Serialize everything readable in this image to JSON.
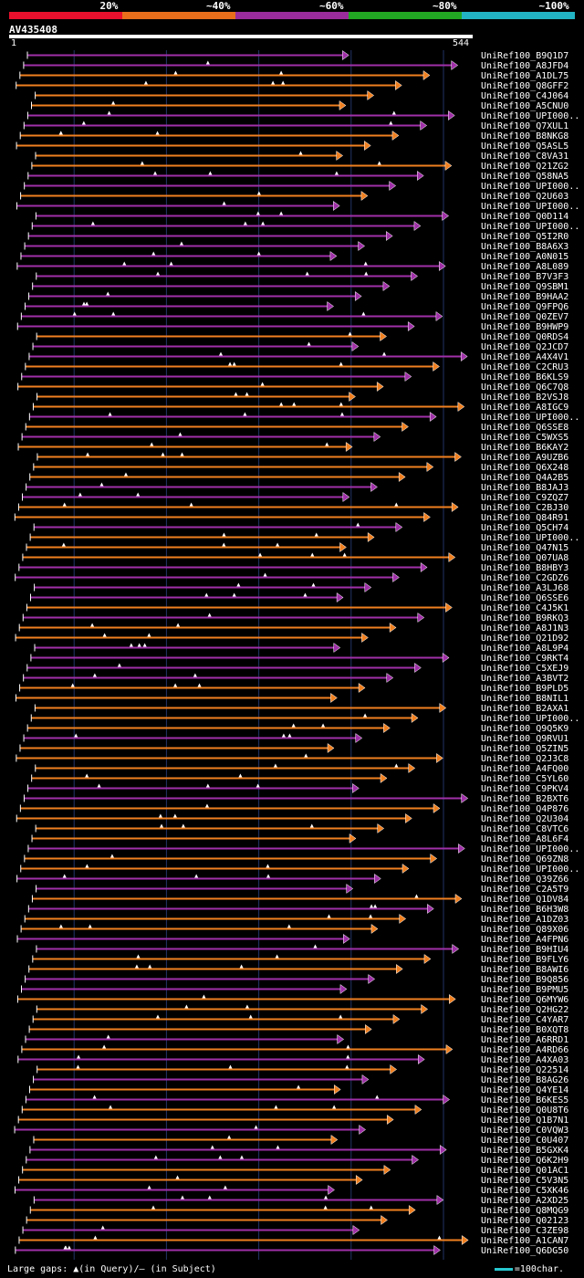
{
  "chart_data": {
    "type": "alignment-overview",
    "title": "AV435408",
    "query_start": 1,
    "query_end": 544,
    "legend": [
      {
        "label": "20%",
        "color": "#e8102c"
      },
      {
        "label": "~40%",
        "color": "#e86e1c"
      },
      {
        "label": "~60%",
        "color": "#9b2c9b"
      },
      {
        "label": "~80%",
        "color": "#22a822"
      },
      {
        "label": "~100%",
        "color": "#22b4c4"
      }
    ],
    "colors": {
      "orange": "#f08020",
      "purple": "#a030a8",
      "grid": "#223366",
      "gap_marker": "#ffffff"
    },
    "hits": [
      {
        "label": "UniRef100_B9Q1D7",
        "color": "purple"
      },
      {
        "label": "UniRef100_A8JFD4",
        "color": "purple"
      },
      {
        "label": "UniRef100_A1DL75",
        "color": "orange"
      },
      {
        "label": "UniRef100_Q8GFF2",
        "color": "orange"
      },
      {
        "label": "UniRef100_C4J064",
        "color": "orange"
      },
      {
        "label": "UniRef100_A5CNU0",
        "color": "orange"
      },
      {
        "label": "UniRef100_UPI000..",
        "color": "purple"
      },
      {
        "label": "UniRef100_Q7XUL1",
        "color": "purple"
      },
      {
        "label": "UniRef100_B8NKG8",
        "color": "orange"
      },
      {
        "label": "UniRef100_Q5ASL5",
        "color": "orange"
      },
      {
        "label": "UniRef100_C8VA31",
        "color": "orange"
      },
      {
        "label": "UniRef100_Q21ZG2",
        "color": "orange"
      },
      {
        "label": "UniRef100_Q58NA5",
        "color": "purple"
      },
      {
        "label": "UniRef100_UPI000..",
        "color": "purple"
      },
      {
        "label": "UniRef100_Q2U603",
        "color": "orange"
      },
      {
        "label": "UniRef100_UPI000..",
        "color": "purple"
      },
      {
        "label": "UniRef100_Q0D114",
        "color": "purple"
      },
      {
        "label": "UniRef100_UPI000..",
        "color": "purple"
      },
      {
        "label": "UniRef100_Q5I2R0",
        "color": "purple"
      },
      {
        "label": "UniRef100_B8A6X3",
        "color": "purple"
      },
      {
        "label": "UniRef100_A0N015",
        "color": "purple"
      },
      {
        "label": "UniRef100_A8L089",
        "color": "purple"
      },
      {
        "label": "UniRef100_B7V3F3",
        "color": "purple"
      },
      {
        "label": "UniRef100_Q9SBM1",
        "color": "purple"
      },
      {
        "label": "UniRef100_B9HAA2",
        "color": "purple"
      },
      {
        "label": "UniRef100_Q9FPQ6",
        "color": "purple"
      },
      {
        "label": "UniRef100_Q0ZEV7",
        "color": "purple"
      },
      {
        "label": "UniRef100_B9HWP9",
        "color": "purple"
      },
      {
        "label": "UniRef100_Q0RDS4",
        "color": "orange"
      },
      {
        "label": "UniRef100_Q2JCD7",
        "color": "purple"
      },
      {
        "label": "UniRef100_A4X4V1",
        "color": "purple"
      },
      {
        "label": "UniRef100_C2CRU3",
        "color": "orange"
      },
      {
        "label": "UniRef100_B6KLS9",
        "color": "purple"
      },
      {
        "label": "UniRef100_Q6C7Q8",
        "color": "orange"
      },
      {
        "label": "UniRef100_B2VSJ8",
        "color": "orange"
      },
      {
        "label": "UniRef100_A8IGC9",
        "color": "orange"
      },
      {
        "label": "UniRef100_UPI000..",
        "color": "purple"
      },
      {
        "label": "UniRef100_Q6SSE8",
        "color": "orange"
      },
      {
        "label": "UniRef100_C5WXS5",
        "color": "purple"
      },
      {
        "label": "UniRef100_B6KAY2",
        "color": "orange"
      },
      {
        "label": "UniRef100_A9UZB6",
        "color": "orange"
      },
      {
        "label": "UniRef100_Q6X248",
        "color": "orange"
      },
      {
        "label": "UniRef100_Q4A2B5",
        "color": "orange"
      },
      {
        "label": "UniRef100_B8JAJ3",
        "color": "purple"
      },
      {
        "label": "UniRef100_C9ZQZ7",
        "color": "purple"
      },
      {
        "label": "UniRef100_C2BJ30",
        "color": "orange"
      },
      {
        "label": "UniRef100_Q84R91",
        "color": "orange"
      },
      {
        "label": "UniRef100_Q5CH74",
        "color": "purple"
      },
      {
        "label": "UniRef100_UPI000..",
        "color": "orange"
      },
      {
        "label": "UniRef100_Q47N15",
        "color": "orange"
      },
      {
        "label": "UniRef100_Q07UA8",
        "color": "orange"
      },
      {
        "label": "UniRef100_B8HBY3",
        "color": "purple"
      },
      {
        "label": "UniRef100_C2GDZ6",
        "color": "purple"
      },
      {
        "label": "UniRef100_A3LJ68",
        "color": "purple"
      },
      {
        "label": "UniRef100_Q6SSE6",
        "color": "purple"
      },
      {
        "label": "UniRef100_C4J5K1",
        "color": "orange"
      },
      {
        "label": "UniRef100_B9RKQ3",
        "color": "purple"
      },
      {
        "label": "UniRef100_A8J1N3",
        "color": "orange"
      },
      {
        "label": "UniRef100_Q21D92",
        "color": "orange"
      },
      {
        "label": "UniRef100_A8L9P4",
        "color": "purple"
      },
      {
        "label": "UniRef100_C9RKT4",
        "color": "purple"
      },
      {
        "label": "UniRef100_C5XEJ9",
        "color": "purple"
      },
      {
        "label": "UniRef100_A3BVT2",
        "color": "purple"
      },
      {
        "label": "UniRef100_B9PLD5",
        "color": "orange"
      },
      {
        "label": "UniRef100_B8NIL1",
        "color": "orange"
      },
      {
        "label": "UniRef100_B2AXA1",
        "color": "orange"
      },
      {
        "label": "UniRef100_UPI000..",
        "color": "orange"
      },
      {
        "label": "UniRef100_Q9Q5K9",
        "color": "orange"
      },
      {
        "label": "UniRef100_Q9RVU1",
        "color": "purple"
      },
      {
        "label": "UniRef100_Q5ZIN5",
        "color": "orange"
      },
      {
        "label": "UniRef100_Q2J3C8",
        "color": "orange"
      },
      {
        "label": "UniRef100_A4FQ00",
        "color": "orange"
      },
      {
        "label": "UniRef100_C5YL60",
        "color": "orange"
      },
      {
        "label": "UniRef100_C9PKV4",
        "color": "purple"
      },
      {
        "label": "UniRef100_B2BXT6",
        "color": "purple"
      },
      {
        "label": "UniRef100_Q4P876",
        "color": "orange"
      },
      {
        "label": "UniRef100_Q2U304",
        "color": "orange"
      },
      {
        "label": "UniRef100_C8VTC6",
        "color": "orange"
      },
      {
        "label": "UniRef100_A8L6F4",
        "color": "orange"
      },
      {
        "label": "UniRef100_UPI000..",
        "color": "purple"
      },
      {
        "label": "UniRef100_Q69ZN8",
        "color": "orange"
      },
      {
        "label": "UniRef100_UPI000..",
        "color": "orange"
      },
      {
        "label": "UniRef100_Q39Z66",
        "color": "purple"
      },
      {
        "label": "UniRef100_C2A5T9",
        "color": "purple"
      },
      {
        "label": "UniRef100_Q1DV84",
        "color": "orange"
      },
      {
        "label": "UniRef100_B6H3W8",
        "color": "purple"
      },
      {
        "label": "UniRef100_A1DZ03",
        "color": "orange"
      },
      {
        "label": "UniRef100_Q89X06",
        "color": "orange"
      },
      {
        "label": "UniRef100_A4FPN6",
        "color": "purple"
      },
      {
        "label": "UniRef100_B9HIU4",
        "color": "purple"
      },
      {
        "label": "UniRef100_B9FLY6",
        "color": "orange"
      },
      {
        "label": "UniRef100_B8AWI6",
        "color": "orange"
      },
      {
        "label": "UniRef100_B9Q856",
        "color": "purple"
      },
      {
        "label": "UniRef100_B9PMU5",
        "color": "purple"
      },
      {
        "label": "UniRef100_Q6MYW6",
        "color": "orange"
      },
      {
        "label": "UniRef100_Q2HG22",
        "color": "orange"
      },
      {
        "label": "UniRef100_C4YAR7",
        "color": "orange"
      },
      {
        "label": "UniRef100_B0XQT8",
        "color": "orange"
      },
      {
        "label": "UniRef100_A6RRD1",
        "color": "purple"
      },
      {
        "label": "UniRef100_A4RD66",
        "color": "orange"
      },
      {
        "label": "UniRef100_A4XA03",
        "color": "purple"
      },
      {
        "label": "UniRef100_Q22514",
        "color": "orange"
      },
      {
        "label": "UniRef100_B8AG26",
        "color": "purple"
      },
      {
        "label": "UniRef100_Q4YE14",
        "color": "orange"
      },
      {
        "label": "UniRef100_B6KES5",
        "color": "purple"
      },
      {
        "label": "UniRef100_Q0U8T6",
        "color": "orange"
      },
      {
        "label": "UniRef100_Q1B7N1",
        "color": "orange"
      },
      {
        "label": "UniRef100_C0VQW3",
        "color": "purple"
      },
      {
        "label": "UniRef100_C0U407",
        "color": "orange"
      },
      {
        "label": "UniRef100_B5GXK4",
        "color": "purple"
      },
      {
        "label": "UniRef100_Q6K2H9",
        "color": "purple"
      },
      {
        "label": "UniRef100_Q01AC1",
        "color": "orange"
      },
      {
        "label": "UniRef100_C5V3N5",
        "color": "orange"
      },
      {
        "label": "UniRef100_C5XK46",
        "color": "purple"
      },
      {
        "label": "UniRef100_A2XD25",
        "color": "purple"
      },
      {
        "label": "UniRef100_Q8MQG9",
        "color": "orange"
      },
      {
        "label": "UniRef100_Q02123",
        "color": "orange"
      },
      {
        "label": "UniRef100_C3ZE98",
        "color": "purple"
      },
      {
        "label": "UniRef100_A1CAN7",
        "color": "orange"
      },
      {
        "label": "UniRef100_Q6DG50",
        "color": "purple"
      }
    ]
  },
  "footer": {
    "gaps_label": "Large gaps: ▲(in Query)/– (in Subject)",
    "scale_label": "=100char."
  }
}
